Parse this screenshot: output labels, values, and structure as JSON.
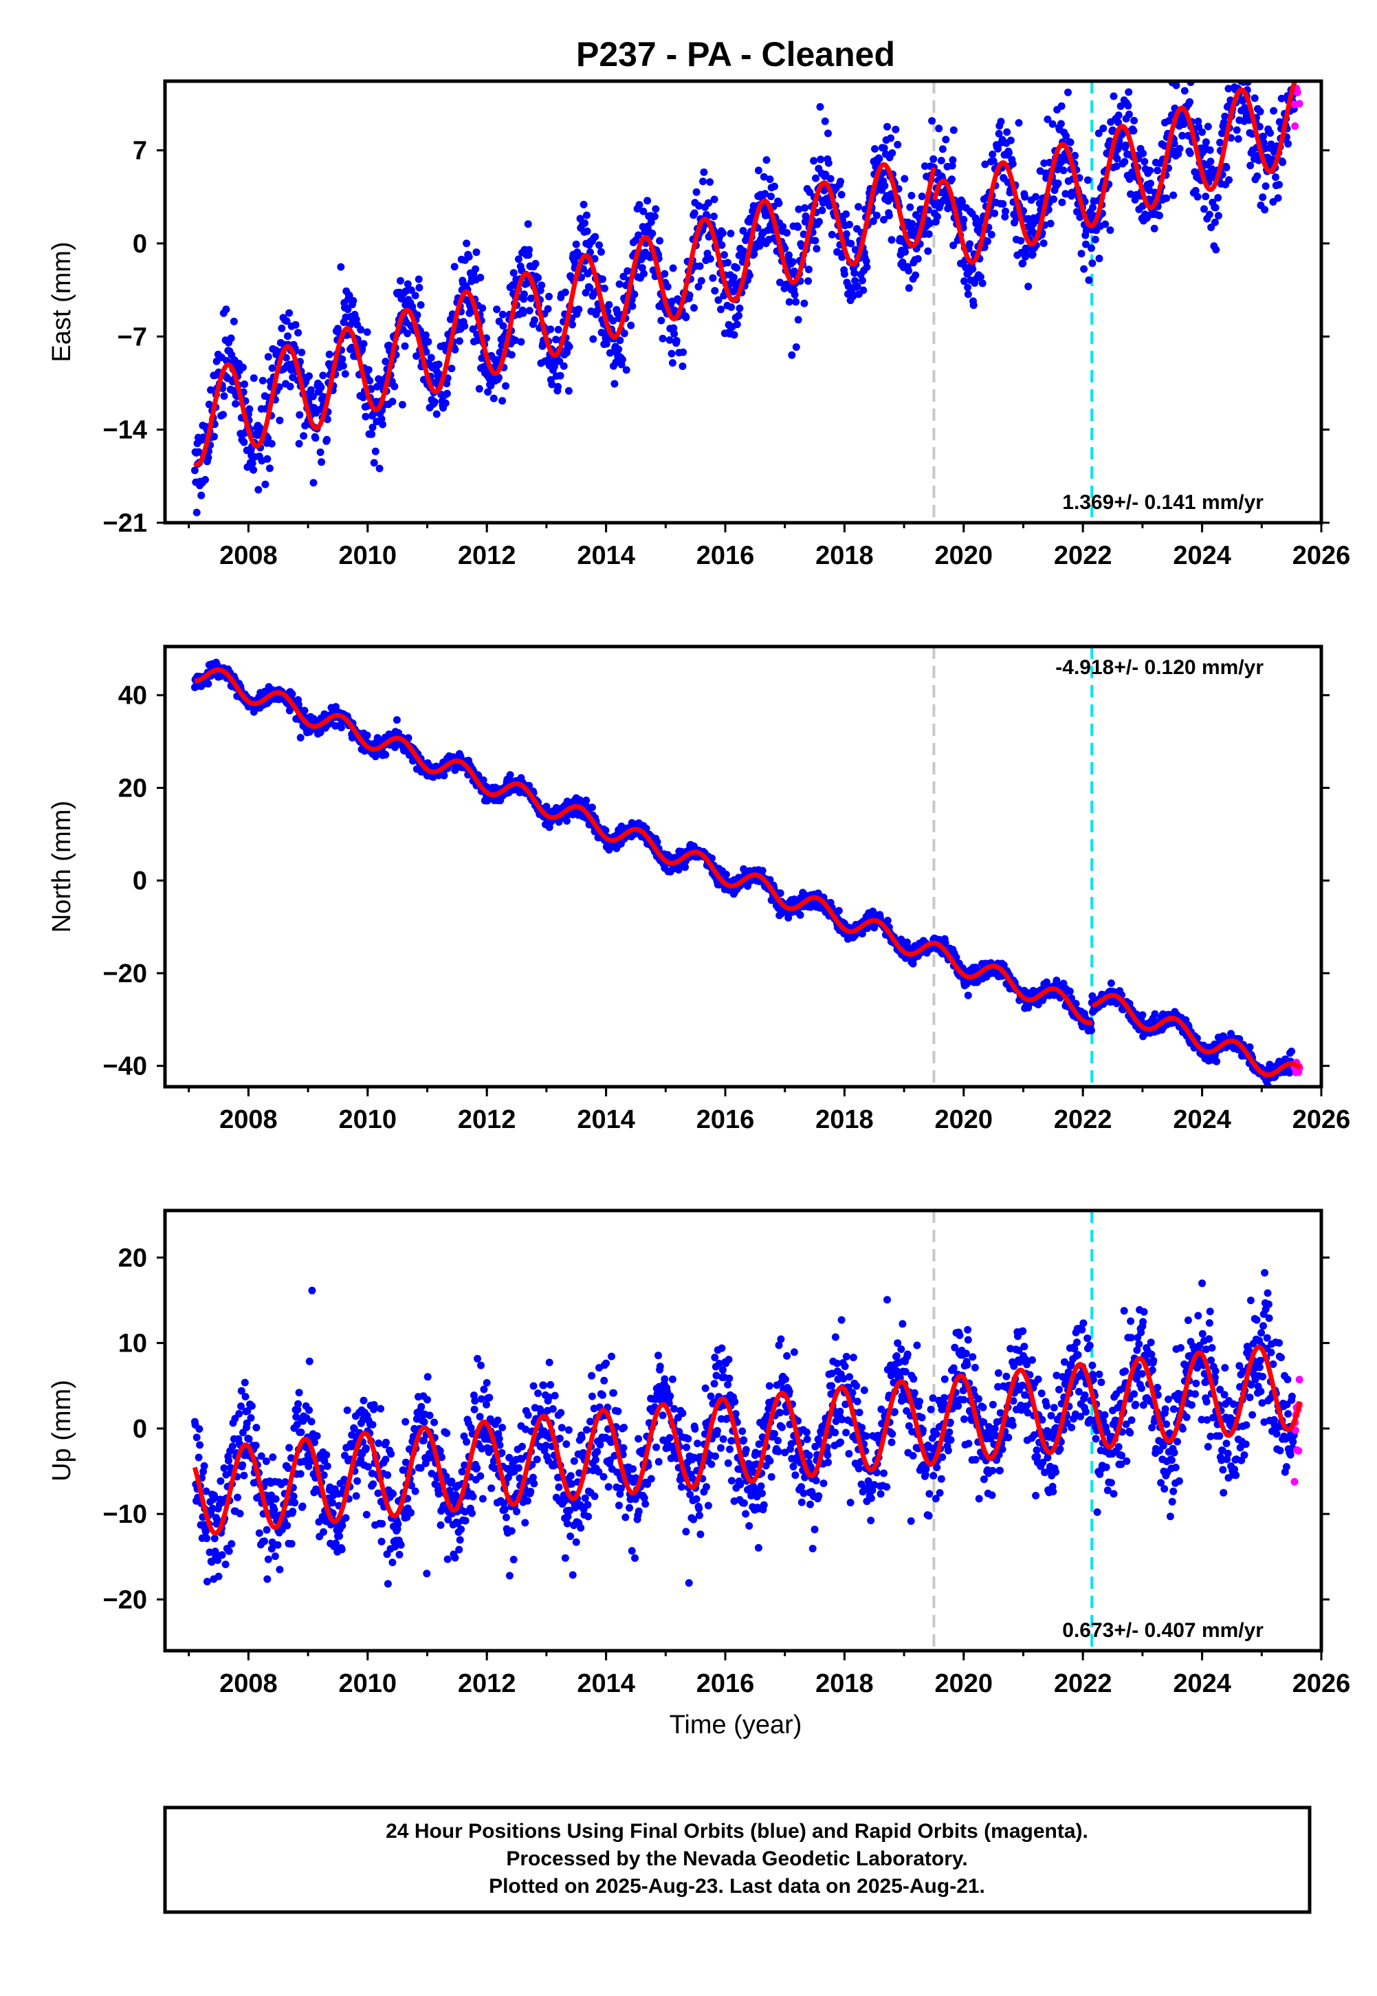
{
  "title": "P237  - PA - Cleaned",
  "x_axis_label": "Time (year)",
  "footer": {
    "lines": [
      "24 Hour Positions Using Final Orbits (blue) and Rapid Orbits (magenta).",
      "Processed by the Nevada Geodetic Laboratory.",
      "Plotted on 2025-Aug-23. Last data on 2025-Aug-21."
    ]
  },
  "colors": {
    "final_orbits": "#0000ff",
    "rapid_orbits": "#ff00ff",
    "model_fit": "#ff0000",
    "equipment_change_line": "#c8c8c8",
    "event_line": "#00e5ee"
  },
  "chart_data": [
    {
      "type": "scatter",
      "panel": "east",
      "ylabel": "East (mm)",
      "xlim": [
        2006.6,
        2026.0
      ],
      "ylim": [
        -21,
        12.2
      ],
      "yticks": [
        -21,
        -14,
        -7,
        0,
        7
      ],
      "xticks": [
        2008,
        2010,
        2012,
        2014,
        2016,
        2018,
        2020,
        2022,
        2024,
        2026
      ],
      "rate_label": "1.369+/- 0.141 mm/yr",
      "start_year": 2007.1,
      "end_year": 2025.64,
      "rapid_start_year": 2025.55,
      "trend_mm_per_yr": 1.369,
      "offset_mm_at_2016": -1.1,
      "annual_amp_mm": 3.4,
      "annual_phase_year": 2007.4,
      "noise_sd_mm": 1.7,
      "steps": [
        {
          "year": 2019.5,
          "offset_mm": -2.6
        }
      ],
      "vertical_lines": [
        {
          "year": 2019.5,
          "kind": "equipment"
        },
        {
          "year": 2022.15,
          "kind": "event"
        }
      ]
    },
    {
      "type": "scatter",
      "panel": "north",
      "ylabel": "North (mm)",
      "xlim": [
        2006.6,
        2026.0
      ],
      "ylim": [
        -44.5,
        50.5
      ],
      "yticks": [
        -40,
        -20,
        0,
        20,
        40
      ],
      "xticks": [
        2008,
        2010,
        2012,
        2014,
        2016,
        2018,
        2020,
        2022,
        2024,
        2026
      ],
      "rate_label": "-4.918+/- 0.120 mm/yr",
      "start_year": 2007.1,
      "end_year": 2025.64,
      "rapid_start_year": 2025.55,
      "trend_mm_per_yr": -4.918,
      "offset_mm_at_2016": 1.5,
      "annual_amp_mm": 2.3,
      "annual_phase_year": 2007.3,
      "noise_sd_mm": 0.9,
      "steps": [
        {
          "year": 2022.15,
          "offset_mm": 3.5
        }
      ],
      "vertical_lines": [
        {
          "year": 2019.5,
          "kind": "equipment"
        },
        {
          "year": 2022.15,
          "kind": "event"
        }
      ]
    },
    {
      "type": "scatter",
      "panel": "up",
      "ylabel": "Up (mm)",
      "xlim": [
        2006.6,
        2026.0
      ],
      "ylim": [
        -26,
        25.5
      ],
      "yticks": [
        -20,
        -10,
        0,
        10,
        20
      ],
      "xticks": [
        2008,
        2010,
        2012,
        2014,
        2016,
        2018,
        2020,
        2022,
        2024,
        2026
      ],
      "rate_label": "0.673+/- 0.407 mm/yr",
      "start_year": 2007.1,
      "end_year": 2025.64,
      "rapid_start_year": 2025.55,
      "trend_mm_per_yr": 0.673,
      "offset_mm_at_2016": -1.5,
      "annual_amp_mm": 5.0,
      "annual_phase_year": 2007.7,
      "noise_sd_mm": 3.2,
      "steps": [],
      "vertical_lines": [
        {
          "year": 2019.5,
          "kind": "equipment"
        },
        {
          "year": 2022.15,
          "kind": "event"
        }
      ]
    }
  ]
}
